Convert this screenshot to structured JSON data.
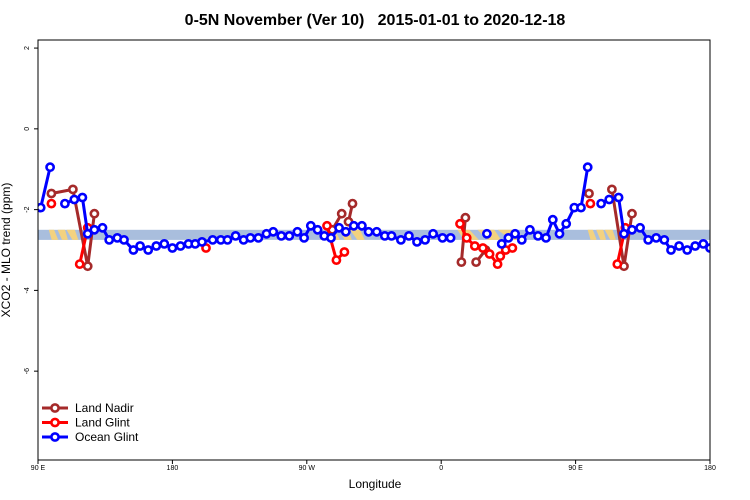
{
  "chart_data": {
    "type": "line",
    "title": "0-5N November (Ver 10)   2015-01-01 to 2020-12-18",
    "xlabel": "Longitude",
    "ylabel": "XCO2 - MLO trend (ppm)",
    "xlim": [
      0,
      500
    ],
    "ylim": [
      -8.2,
      2.2
    ],
    "x_ticks": [
      {
        "value": 0,
        "label": "90 E"
      },
      {
        "value": 100,
        "label": "180"
      },
      {
        "value": 200,
        "label": "90 W"
      },
      {
        "value": 300,
        "label": "0"
      },
      {
        "value": 400,
        "label": "90 E"
      },
      {
        "value": 500,
        "label": "180"
      }
    ],
    "y_ticks": [
      -6,
      -4,
      -2,
      0,
      2
    ],
    "band": {
      "y_low": -2.75,
      "y_high": -2.5,
      "color": "#a9bedd",
      "highlight_color": "#f3d27f",
      "highlights": [
        [
          8,
          30
        ],
        [
          216,
          243
        ],
        [
          312,
          362
        ],
        [
          409,
          430
        ]
      ]
    },
    "colors": {
      "land_nadir": "#a52a2a",
      "land_glint": "#ff0000",
      "ocean_glint": "#0000ff"
    },
    "legend": {
      "position": "bottom-left"
    },
    "series": [
      {
        "name": "Land Nadir",
        "key": "land_nadir",
        "segments": [
          [
            [
              10,
              -1.6
            ],
            [
              26,
              -1.5
            ],
            [
              37,
              -3.4
            ],
            [
              42,
              -2.1
            ]
          ],
          [
            [
              219,
              -2.5
            ],
            [
              226,
              -2.1
            ]
          ],
          [
            [
              231,
              -2.3
            ],
            [
              234,
              -1.85
            ]
          ],
          [
            [
              315,
              -3.3
            ],
            [
              318,
              -2.2
            ]
          ],
          [
            [
              326,
              -3.3
            ],
            [
              333,
              -3.0
            ]
          ],
          [
            [
              410,
              -1.6
            ]
          ],
          [
            [
              427,
              -1.5
            ],
            [
              436,
              -3.4
            ],
            [
              442,
              -2.1
            ]
          ]
        ]
      },
      {
        "name": "Land Glint",
        "key": "land_glint",
        "segments": [
          [
            [
              10,
              -1.85
            ]
          ],
          [
            [
              31,
              -3.35
            ],
            [
              37,
              -2.45
            ]
          ],
          [
            [
              125,
              -2.95
            ]
          ],
          [
            [
              215,
              -2.4
            ],
            [
              222,
              -3.25
            ],
            [
              228,
              -3.05
            ]
          ],
          [
            [
              314,
              -2.35
            ],
            [
              319,
              -2.7
            ],
            [
              325,
              -2.9
            ],
            [
              331,
              -2.95
            ],
            [
              336,
              -3.1
            ],
            [
              342,
              -3.35
            ],
            [
              344,
              -3.15
            ],
            [
              348,
              -3.0
            ],
            [
              353,
              -2.95
            ]
          ],
          [
            [
              411,
              -1.85
            ]
          ],
          [
            [
              431,
              -3.35
            ],
            [
              437,
              -2.45
            ]
          ]
        ]
      },
      {
        "name": "Ocean Glint",
        "key": "ocean_glint",
        "segments": [
          [
            [
              2,
              -1.95
            ],
            [
              9,
              -0.95
            ]
          ],
          [
            [
              20,
              -1.85
            ],
            [
              27,
              -1.75
            ],
            [
              33,
              -1.7
            ],
            [
              37,
              -2.6
            ],
            [
              42,
              -2.5
            ],
            [
              48,
              -2.45
            ],
            [
              53,
              -2.75
            ],
            [
              59,
              -2.7
            ],
            [
              64,
              -2.75
            ],
            [
              71,
              -3.0
            ],
            [
              76,
              -2.9
            ],
            [
              82,
              -3.0
            ],
            [
              88,
              -2.9
            ],
            [
              94,
              -2.85
            ],
            [
              100,
              -2.95
            ],
            [
              106,
              -2.9
            ],
            [
              112,
              -2.85
            ],
            [
              117,
              -2.85
            ],
            [
              122,
              -2.8
            ],
            [
              130,
              -2.75
            ],
            [
              136,
              -2.75
            ],
            [
              141,
              -2.75
            ],
            [
              147,
              -2.65
            ],
            [
              153,
              -2.75
            ],
            [
              158,
              -2.7
            ],
            [
              164,
              -2.7
            ],
            [
              170,
              -2.6
            ],
            [
              175,
              -2.55
            ],
            [
              181,
              -2.65
            ],
            [
              187,
              -2.65
            ],
            [
              193,
              -2.55
            ],
            [
              198,
              -2.7
            ],
            [
              203,
              -2.4
            ],
            [
              208,
              -2.5
            ],
            [
              213,
              -2.65
            ],
            [
              218,
              -2.7
            ],
            [
              224,
              -2.45
            ],
            [
              229,
              -2.55
            ],
            [
              235,
              -2.4
            ],
            [
              241,
              -2.4
            ],
            [
              246,
              -2.55
            ],
            [
              252,
              -2.55
            ],
            [
              258,
              -2.65
            ],
            [
              263,
              -2.65
            ],
            [
              270,
              -2.75
            ],
            [
              276,
              -2.65
            ],
            [
              282,
              -2.8
            ],
            [
              288,
              -2.75
            ],
            [
              294,
              -2.6
            ],
            [
              301,
              -2.7
            ],
            [
              307,
              -2.7
            ]
          ],
          [
            [
              334,
              -2.6
            ]
          ],
          [
            [
              345,
              -2.85
            ],
            [
              350,
              -2.7
            ],
            [
              355,
              -2.6
            ],
            [
              360,
              -2.75
            ],
            [
              366,
              -2.5
            ],
            [
              372,
              -2.65
            ],
            [
              378,
              -2.7
            ],
            [
              383,
              -2.25
            ],
            [
              388,
              -2.6
            ],
            [
              393,
              -2.35
            ],
            [
              399,
              -1.95
            ],
            [
              404,
              -1.95
            ],
            [
              409,
              -0.95
            ]
          ],
          [
            [
              419,
              -1.85
            ],
            [
              425,
              -1.75
            ],
            [
              432,
              -1.7
            ],
            [
              436,
              -2.6
            ],
            [
              442,
              -2.5
            ],
            [
              448,
              -2.45
            ],
            [
              454,
              -2.75
            ],
            [
              460,
              -2.7
            ],
            [
              466,
              -2.75
            ],
            [
              471,
              -3.0
            ],
            [
              477,
              -2.9
            ],
            [
              483,
              -3.0
            ],
            [
              489,
              -2.9
            ],
            [
              495,
              -2.85
            ],
            [
              500,
              -2.95
            ]
          ]
        ]
      }
    ]
  }
}
